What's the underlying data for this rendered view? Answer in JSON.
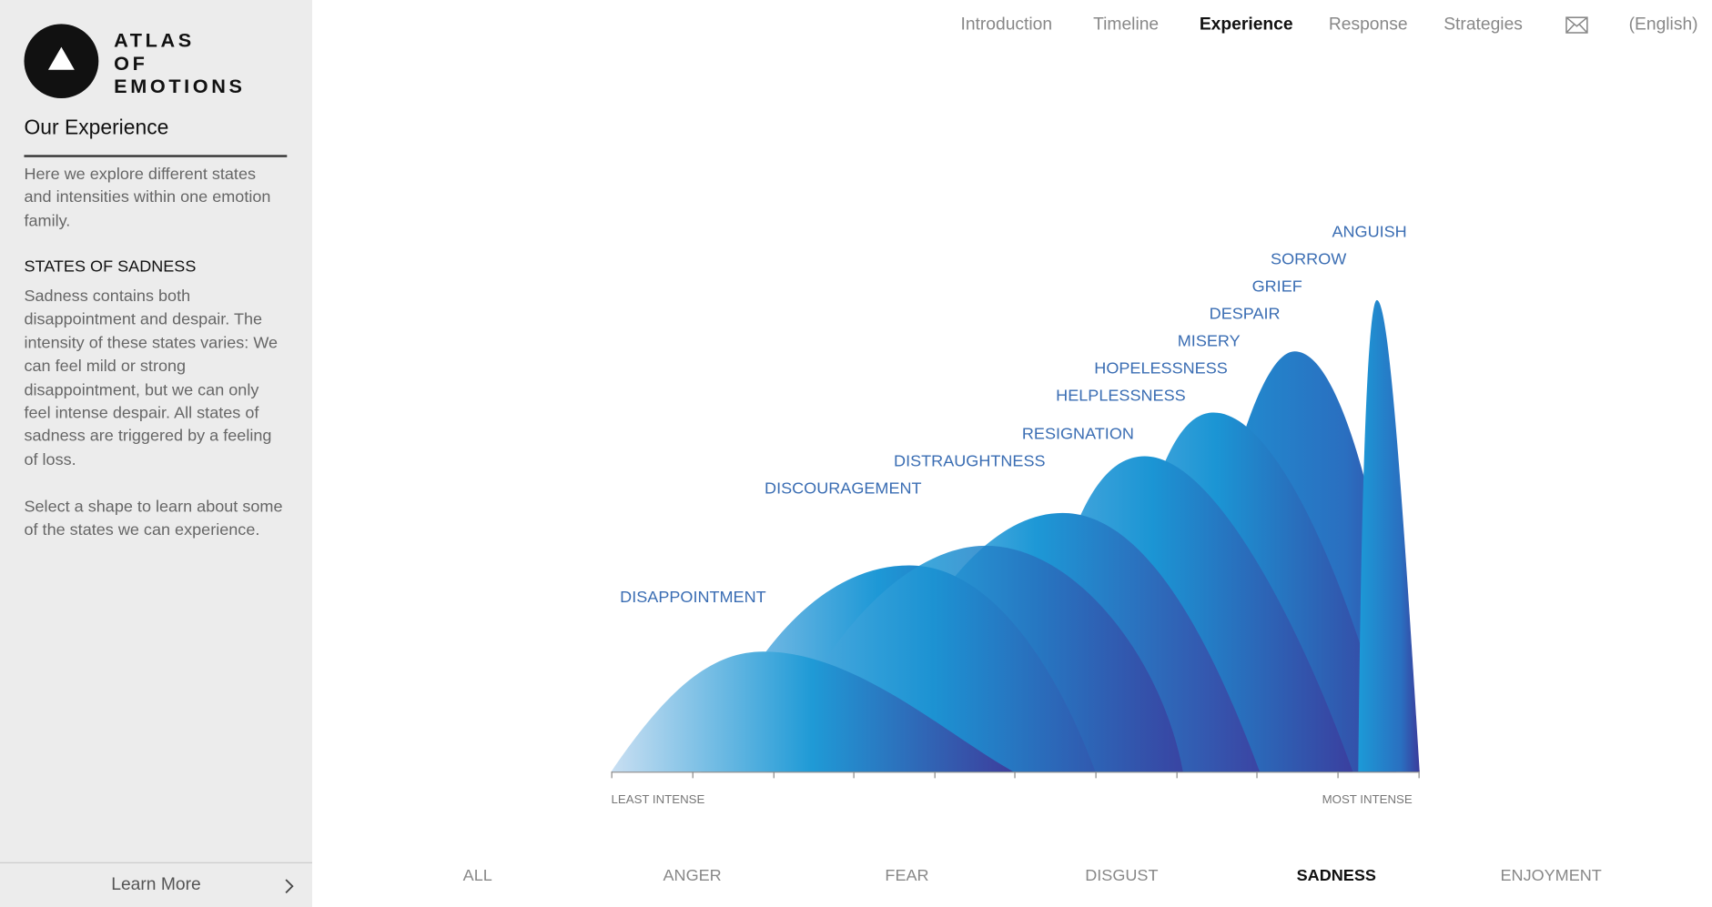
{
  "sidebar": {
    "logo": [
      "ATLAS",
      "OF",
      "EMOTIONS"
    ],
    "title": "Our Experience",
    "intro": "Here we explore different states and intensities within one emotion family.",
    "section_title": "STATES OF SADNESS",
    "body": "Sadness contains both disappointment and despair. The intensity of these states varies: We can feel mild or strong disappointment, but we can only feel intense despair. All states of sadness are triggered by a feeling of loss.",
    "instruction": "Select a shape to learn about some of the states we can experience.",
    "learn_more": "Learn More"
  },
  "nav": [
    "Introduction",
    "Timeline",
    "Experience",
    "Response",
    "Strategies",
    "(English)"
  ],
  "states": [
    "ANGUISH",
    "SORROW",
    "GRIEF",
    "DESPAIR",
    "MISERY",
    "HOPELESSNESS",
    "HELPLESSNESS",
    "RESIGNATION",
    "DISTRAUGHTNESS",
    "DISCOURAGEMENT",
    "DISAPPOINTMENT"
  ],
  "axis": {
    "min_label": "LEAST INTENSE",
    "max_label": "MOST INTENSE"
  },
  "tabs": [
    "ALL",
    "ANGER",
    "FEAR",
    "DISGUST",
    "SADNESS",
    "ENJOYMENT"
  ]
}
